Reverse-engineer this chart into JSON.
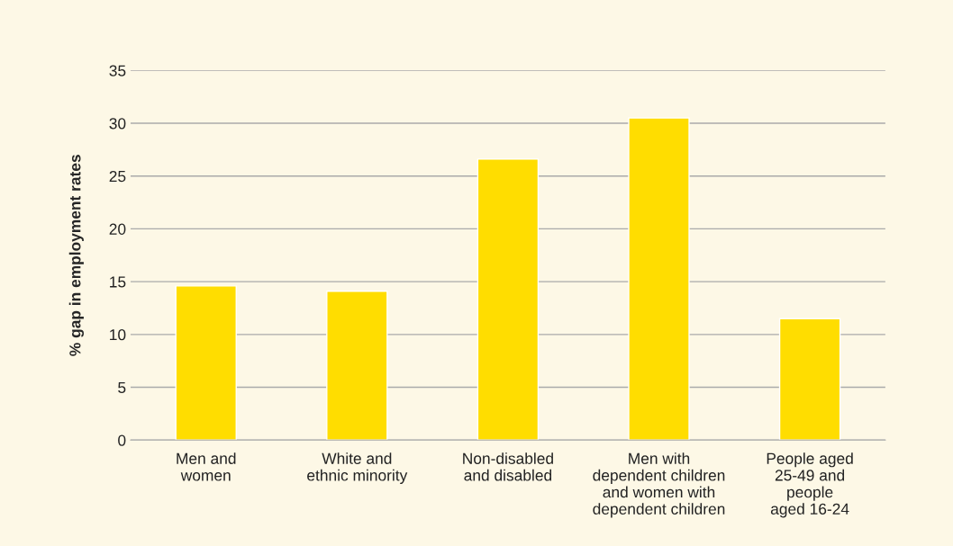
{
  "chart_data": {
    "type": "bar",
    "ylabel": "% gap in employment rates",
    "categories": [
      "Men and\nwomen",
      "White and\nethnic minority",
      "Non-disabled\nand disabled",
      "Men with\ndependent children\nand women with\ndependent children",
      "People aged\n25-49 and\npeople\naged 16-24"
    ],
    "values": [
      14.6,
      14.1,
      26.6,
      30.5,
      11.5
    ],
    "color": "#ffdd00",
    "ylim": [
      0,
      35
    ],
    "yticks": [
      0,
      5,
      10,
      15,
      20,
      25,
      30,
      35
    ],
    "grid": "y"
  }
}
